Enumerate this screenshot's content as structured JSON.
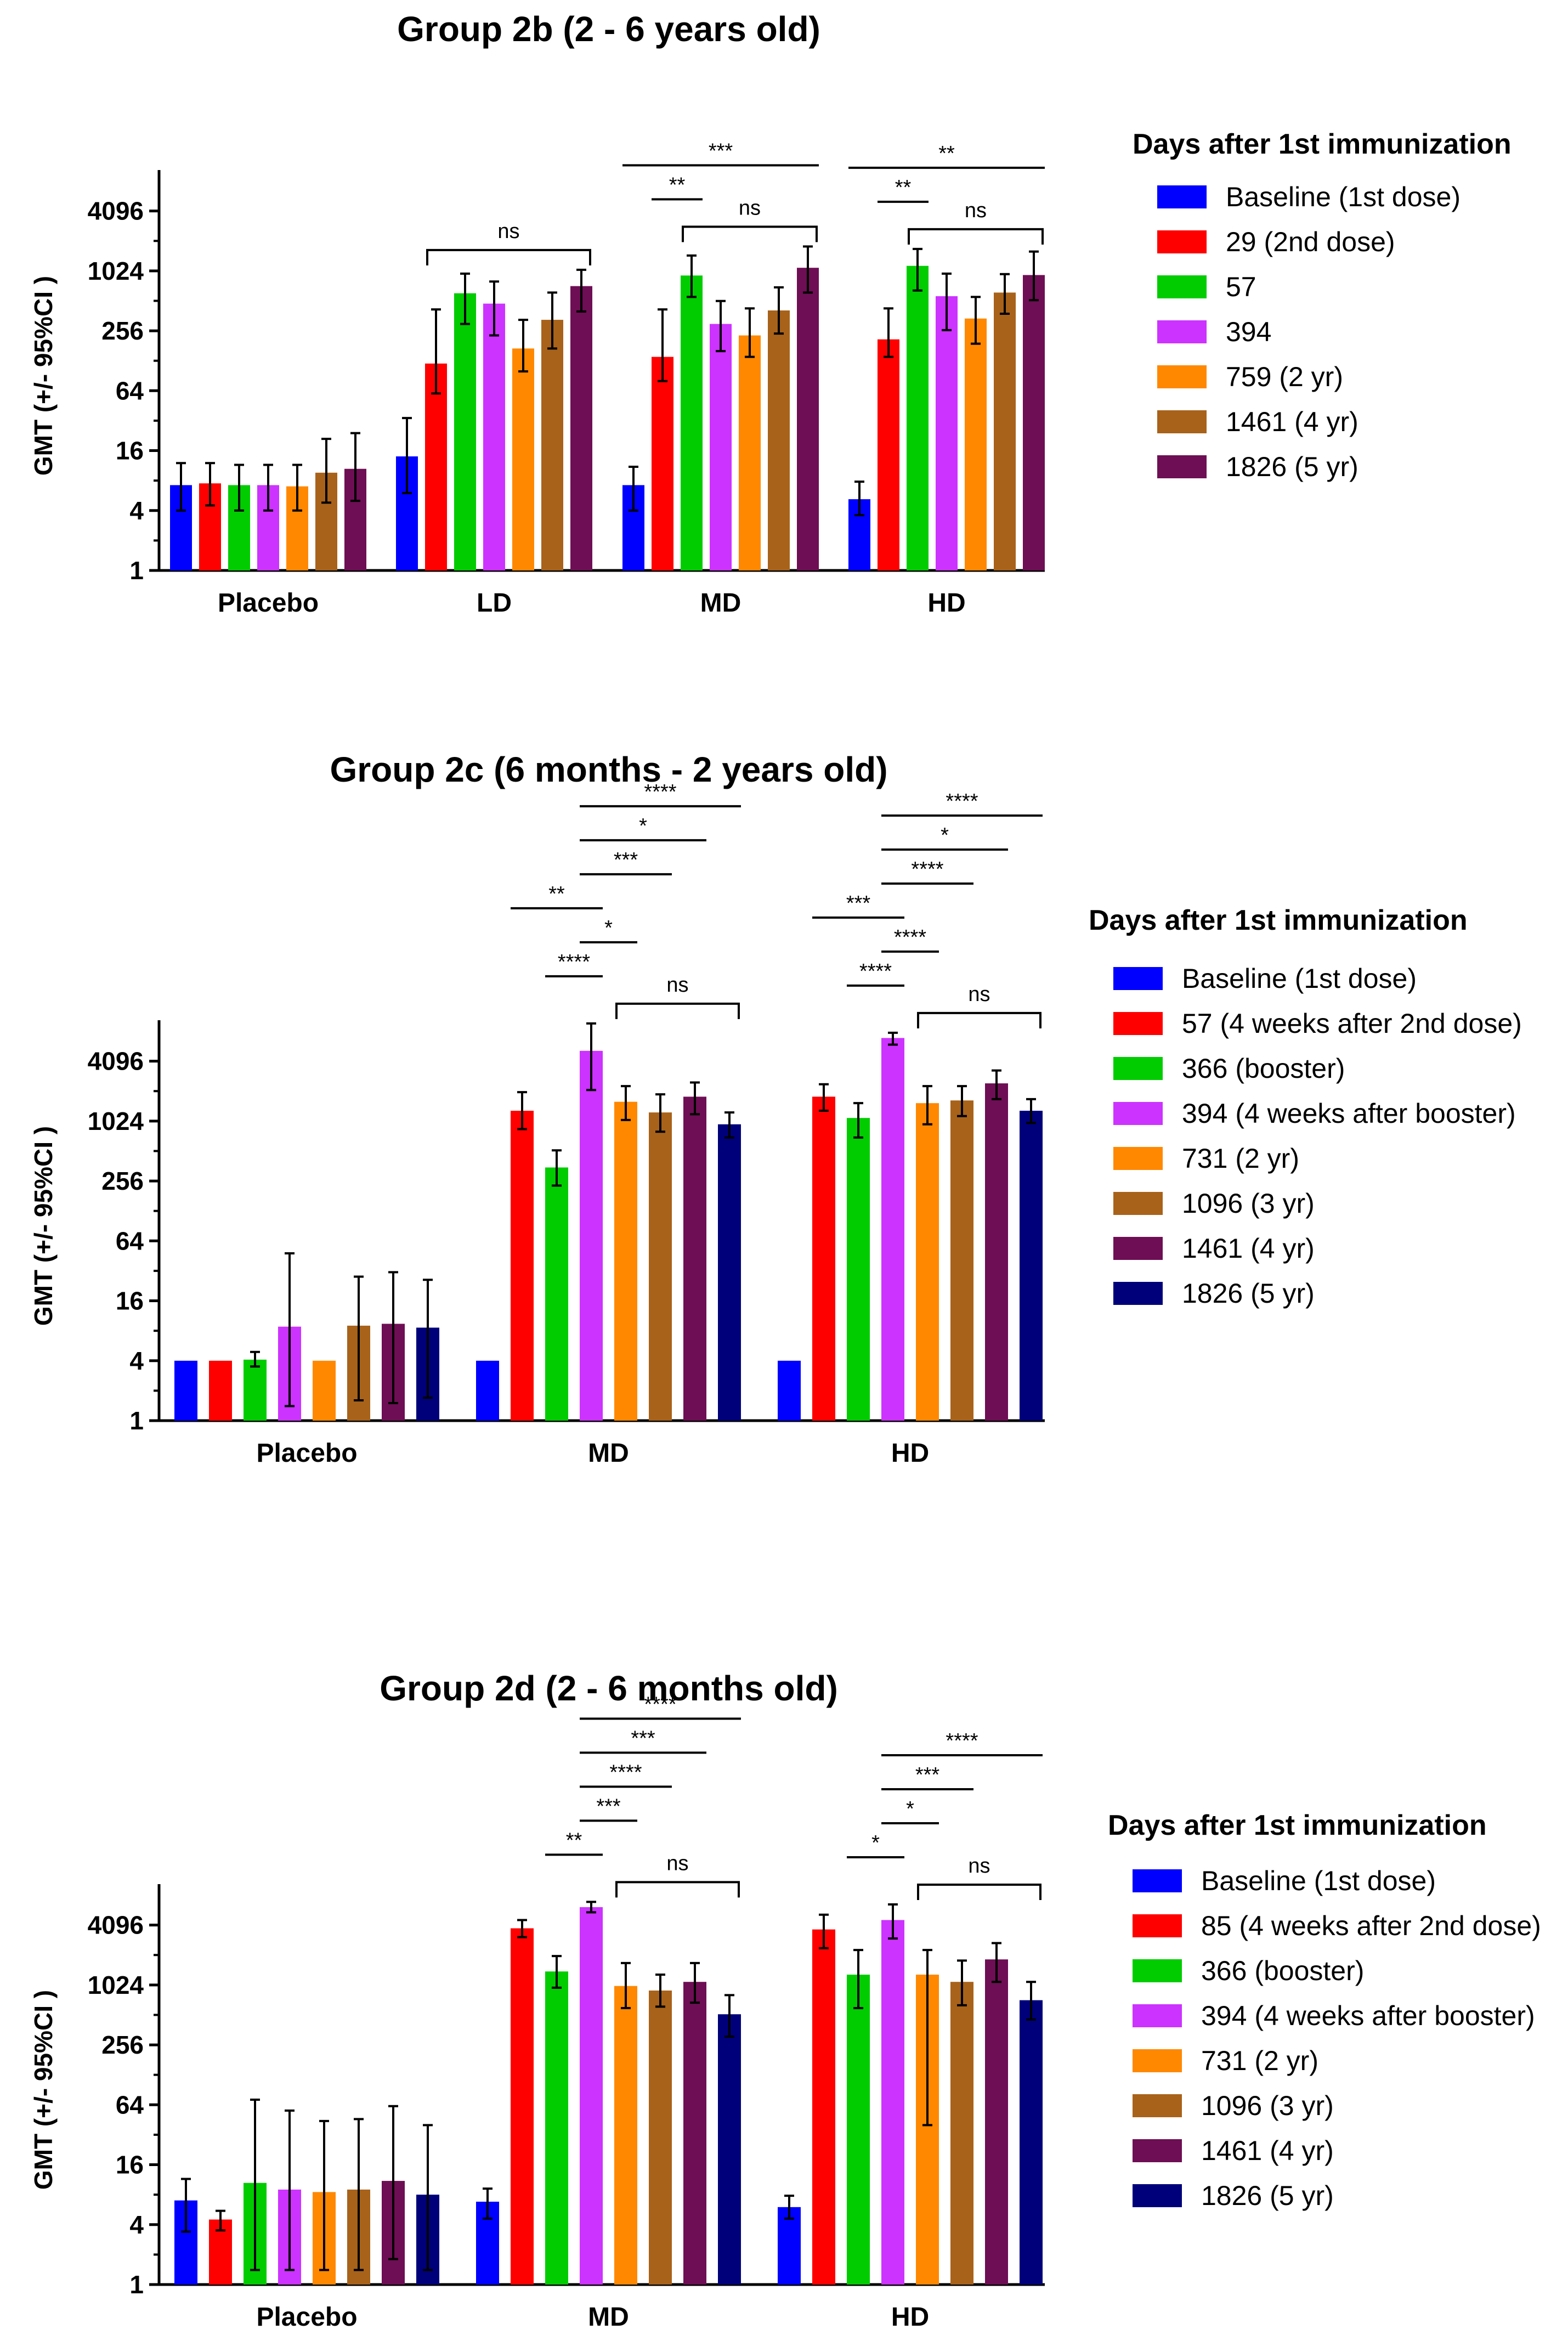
{
  "chart_data": [
    {
      "type": "bar",
      "title": "Group 2b (2 - 6 years old)",
      "ylabel": "GMT (+/- 95%CI )",
      "xlabel": "",
      "yscale": "log2",
      "ylim": [
        1,
        8192
      ],
      "yticks": [
        1,
        4,
        16,
        64,
        256,
        1024,
        4096
      ],
      "ytick_labels": [
        "1",
        "4",
        "16",
        "64",
        "256",
        "1024",
        "4096"
      ],
      "categories": [
        "Placebo",
        "LD",
        "MD",
        "HD"
      ],
      "legend_title": "Days after 1st immunization",
      "series": [
        {
          "name": "Baseline (1st dose)",
          "color": "#0000ff",
          "values": [
            7.2,
            14,
            7.2,
            5.2
          ],
          "ci_low": [
            4,
            6,
            4,
            3.6
          ],
          "ci_high": [
            12,
            34,
            11,
            7.8
          ]
        },
        {
          "name": "29 (2nd dose)",
          "color": "#ff0000",
          "values": [
            7.5,
            120,
            140,
            null
          ],
          "ci_low": [
            4.5,
            60,
            80,
            null
          ],
          "ci_high": [
            12,
            420,
            420,
            null
          ]
        },
        {
          "name": "57",
          "color": "#00cc00",
          "values": [
            7.2,
            610,
            920,
            null
          ],
          "ci_low": [
            4,
            300,
            560,
            null
          ],
          "ci_high": [
            11.5,
            960,
            1460,
            null
          ]
        },
        {
          "name": "394",
          "color": "#cc33ff",
          "values": [
            7.2,
            480,
            null,
            null
          ],
          "ci_low": [
            4,
            230,
            null,
            null
          ],
          "ci_high": [
            11.5,
            800,
            null,
            null
          ]
        },
        {
          "name": "759 (2 yr)",
          "color": "#ff8800",
          "values": [
            7.0,
            170,
            null,
            null
          ],
          "ci_low": [
            4,
            100,
            null,
            null
          ],
          "ci_high": [
            11.5,
            330,
            null,
            null
          ]
        },
        {
          "name": "1461 (4 yr)",
          "color": "#a8621a",
          "values": [
            9.6,
            330,
            null,
            null
          ],
          "ci_low": [
            4.8,
            170,
            null,
            null
          ],
          "ci_high": [
            21,
            620,
            null,
            null
          ]
        },
        {
          "name": "1826 (5 yr)",
          "color": "#6e0e54",
          "values": [
            10.5,
            720,
            null,
            null
          ],
          "ci_low": [
            5,
            400,
            null,
            null
          ],
          "ci_high": [
            24,
            1050,
            null,
            null
          ]
        }
      ],
      "bars": [
        [
          7.2,
          7.5,
          7.2,
          7.2,
          7.0,
          9.6,
          10.5
        ],
        [
          14,
          120,
          610,
          480,
          170,
          330,
          720
        ],
        [
          7.2,
          140,
          920,
          300,
          230,
          410,
          1100
        ],
        [
          5.2,
          210,
          1150,
          570,
          340,
          620,
          930
        ]
      ],
      "ci_low": [
        [
          4,
          4.5,
          4,
          4,
          4,
          4.8,
          5
        ],
        [
          6,
          60,
          300,
          230,
          100,
          170,
          400
        ],
        [
          4,
          80,
          560,
          160,
          140,
          240,
          620
        ],
        [
          3.6,
          140,
          650,
          260,
          190,
          380,
          520
        ]
      ],
      "ci_high": [
        [
          12,
          12,
          11.5,
          11.5,
          11.5,
          21,
          24
        ],
        [
          34,
          420,
          960,
          800,
          330,
          620,
          1050
        ],
        [
          11,
          420,
          1460,
          510,
          430,
          700,
          1800
        ],
        [
          7.8,
          430,
          1700,
          960,
          560,
          950,
          1600
        ]
      ],
      "annotations": [
        {
          "group": 1,
          "from": 1,
          "to": 6,
          "label": "ns",
          "style": "bracket"
        },
        {
          "group": 2,
          "from": 0,
          "to": 6,
          "label": "***",
          "style": "line"
        },
        {
          "group": 2,
          "from": 1,
          "to": 2,
          "label": "**",
          "style": "line"
        },
        {
          "group": 2,
          "from": 2,
          "to": 6,
          "label": "ns",
          "style": "bracket"
        },
        {
          "group": 3,
          "from": 0,
          "to": 6,
          "label": "**",
          "style": "line"
        },
        {
          "group": 3,
          "from": 1,
          "to": 2,
          "label": "**",
          "style": "line"
        },
        {
          "group": 3,
          "from": 2,
          "to": 6,
          "label": "ns",
          "style": "bracket"
        }
      ]
    },
    {
      "type": "bar",
      "title": "Group 2c (6 months - 2 years old)",
      "ylabel": "GMT (+/- 95%CI )",
      "xlabel": "",
      "yscale": "log2",
      "ylim": [
        1,
        8192
      ],
      "yticks": [
        1,
        4,
        16,
        64,
        256,
        1024,
        4096
      ],
      "ytick_labels": [
        "1",
        "4",
        "16",
        "64",
        "256",
        "1024",
        "4096"
      ],
      "categories": [
        "Placebo",
        "MD",
        "HD"
      ],
      "legend_title": "Days after 1st immunization",
      "series": [
        {
          "name": "Baseline (1st dose)",
          "color": "#0000ff"
        },
        {
          "name": "57 (4 weeks after 2nd dose)",
          "color": "#ff0000"
        },
        {
          "name": "366 (booster)",
          "color": "#00cc00"
        },
        {
          "name": "394 (4 weeks after booster)",
          "color": "#cc33ff"
        },
        {
          "name": "731 (2 yr)",
          "color": "#ff8800"
        },
        {
          "name": "1096 (3 yr)",
          "color": "#a8621a"
        },
        {
          "name": "1461 (4 yr)",
          "color": "#6e0e54"
        },
        {
          "name": "1826 (5 yr)",
          "color": "#00007a"
        }
      ],
      "bars": [
        [
          4,
          4,
          4.1,
          8.8,
          4,
          9,
          9.4,
          8.6
        ],
        [
          4,
          1300,
          350,
          5200,
          1600,
          1250,
          1800,
          950
        ],
        [
          4,
          1800,
          1100,
          7000,
          1550,
          1650,
          2450,
          1300
        ]
      ],
      "ci_low": [
        [
          4,
          4,
          3.5,
          1.4,
          4,
          1.6,
          1.5,
          1.7
        ],
        [
          4,
          850,
          230,
          2100,
          1050,
          800,
          1200,
          700
        ],
        [
          4,
          1300,
          700,
          6000,
          950,
          1150,
          1700,
          980
        ]
      ],
      "ci_high": [
        [
          4,
          4,
          4.9,
          48,
          4,
          28,
          31,
          26
        ],
        [
          4,
          2000,
          520,
          9800,
          2300,
          1900,
          2500,
          1250
        ],
        [
          4,
          2400,
          1550,
          7900,
          2300,
          2300,
          3300,
          1700
        ]
      ],
      "annotations": [
        {
          "group": 1,
          "from": 1,
          "to": 3,
          "label": "**",
          "style": "line"
        },
        {
          "group": 1,
          "from": 2,
          "to": 3,
          "label": "****",
          "style": "line"
        },
        {
          "group": 1,
          "from": 3,
          "to": 4,
          "label": "*",
          "style": "line"
        },
        {
          "group": 1,
          "from": 3,
          "to": 5,
          "label": "***",
          "style": "line"
        },
        {
          "group": 1,
          "from": 3,
          "to": 6,
          "label": "*",
          "style": "line"
        },
        {
          "group": 1,
          "from": 3,
          "to": 7,
          "label": "****",
          "style": "line"
        },
        {
          "group": 1,
          "from": 4,
          "to": 7,
          "label": "ns",
          "style": "bracket"
        },
        {
          "group": 2,
          "from": 1,
          "to": 3,
          "label": "***",
          "style": "line"
        },
        {
          "group": 2,
          "from": 2,
          "to": 3,
          "label": "****",
          "style": "line"
        },
        {
          "group": 2,
          "from": 3,
          "to": 4,
          "label": "****",
          "style": "line"
        },
        {
          "group": 2,
          "from": 3,
          "to": 5,
          "label": "****",
          "style": "line"
        },
        {
          "group": 2,
          "from": 3,
          "to": 6,
          "label": "*",
          "style": "line"
        },
        {
          "group": 2,
          "from": 3,
          "to": 7,
          "label": "****",
          "style": "line"
        },
        {
          "group": 2,
          "from": 4,
          "to": 7,
          "label": "ns",
          "style": "bracket"
        }
      ]
    },
    {
      "type": "bar",
      "title": "Group 2d (2 - 6 months old)",
      "ylabel": "GMT (+/- 95%CI )",
      "xlabel": "",
      "yscale": "log2",
      "ylim": [
        1,
        8192
      ],
      "yticks": [
        1,
        4,
        16,
        64,
        256,
        1024,
        4096
      ],
      "ytick_labels": [
        "1",
        "4",
        "16",
        "64",
        "256",
        "1024",
        "4096"
      ],
      "categories": [
        "Placebo",
        "MD",
        "HD"
      ],
      "legend_title": "Days after 1st immunization",
      "series": [
        {
          "name": "Baseline (1st dose)",
          "color": "#0000ff"
        },
        {
          "name": "85 (4 weeks after 2nd dose)",
          "color": "#ff0000"
        },
        {
          "name": "366 (booster)",
          "color": "#00cc00"
        },
        {
          "name": "394 (4 weeks after booster)",
          "color": "#cc33ff"
        },
        {
          "name": "731 (2 yr)",
          "color": "#ff8800"
        },
        {
          "name": "1096 (3 yr)",
          "color": "#a8621a"
        },
        {
          "name": "1461 (4 yr)",
          "color": "#6e0e54"
        },
        {
          "name": "1826 (5 yr)",
          "color": "#00007a"
        }
      ],
      "bars": [
        [
          7,
          4.5,
          10.5,
          9,
          8.5,
          9,
          11,
          8
        ],
        [
          6.8,
          3800,
          1400,
          6200,
          1000,
          900,
          1100,
          520
        ],
        [
          6,
          3700,
          1300,
          4600,
          1300,
          1100,
          1850,
          720
        ]
      ],
      "ci_low": [
        [
          3.4,
          3.5,
          1.4,
          1.4,
          1.4,
          1.4,
          1.8,
          1.4
        ],
        [
          4.6,
          3100,
          960,
          5500,
          600,
          620,
          680,
          310
        ],
        [
          4.6,
          2400,
          600,
          3000,
          40,
          640,
          1100,
          460
        ]
      ],
      "ci_high": [
        [
          11.5,
          5.5,
          72,
          56,
          44,
          46,
          62,
          40
        ],
        [
          9.2,
          4600,
          2000,
          7000,
          1700,
          1300,
          1700,
          810
        ],
        [
          7.8,
          5200,
          2300,
          6600,
          2300,
          1800,
          2700,
          1100
        ]
      ],
      "annotations": [
        {
          "group": 1,
          "from": 2,
          "to": 3,
          "label": "**",
          "style": "line"
        },
        {
          "group": 1,
          "from": 3,
          "to": 4,
          "label": "***",
          "style": "line"
        },
        {
          "group": 1,
          "from": 3,
          "to": 5,
          "label": "****",
          "style": "line"
        },
        {
          "group": 1,
          "from": 3,
          "to": 6,
          "label": "***",
          "style": "line"
        },
        {
          "group": 1,
          "from": 3,
          "to": 7,
          "label": "****",
          "style": "line"
        },
        {
          "group": 1,
          "from": 4,
          "to": 7,
          "label": "ns",
          "style": "bracket"
        },
        {
          "group": 2,
          "from": 2,
          "to": 3,
          "label": "*",
          "style": "line"
        },
        {
          "group": 2,
          "from": 3,
          "to": 4,
          "label": "*",
          "style": "line"
        },
        {
          "group": 2,
          "from": 3,
          "to": 5,
          "label": "***",
          "style": "line"
        },
        {
          "group": 2,
          "from": 3,
          "to": 7,
          "label": "****",
          "style": "line"
        },
        {
          "group": 2,
          "from": 4,
          "to": 7,
          "label": "ns",
          "style": "bracket"
        }
      ]
    }
  ]
}
